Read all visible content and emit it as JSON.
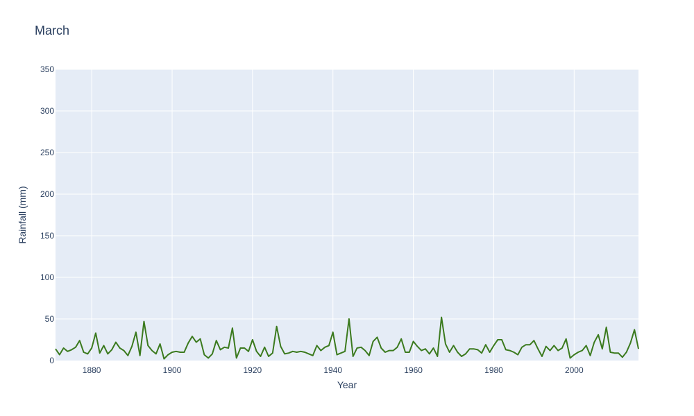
{
  "chart_data": {
    "type": "line",
    "title": "March",
    "xlabel": "Year",
    "ylabel": "Rainfall (mm)",
    "xlim": [
      1871,
      2016
    ],
    "ylim": [
      0,
      350
    ],
    "grid": true,
    "x_ticks": [
      1880,
      1900,
      1920,
      1940,
      1960,
      1980,
      2000
    ],
    "y_ticks": [
      0,
      50,
      100,
      150,
      200,
      250,
      300,
      350
    ],
    "line_color": "#3b7a1e",
    "series": [
      {
        "x": [
          1871,
          1872,
          1873,
          1874,
          1875,
          1876,
          1877,
          1878,
          1879,
          1880,
          1881,
          1882,
          1883,
          1884,
          1885,
          1886,
          1887,
          1888,
          1889,
          1890,
          1891,
          1892,
          1893,
          1894,
          1895,
          1896,
          1897,
          1898,
          1899,
          1900,
          1901,
          1902,
          1903,
          1904,
          1905,
          1906,
          1907,
          1908,
          1909,
          1910,
          1911,
          1912,
          1913,
          1914,
          1915,
          1916,
          1917,
          1918,
          1919,
          1920,
          1921,
          1922,
          1923,
          1924,
          1925,
          1926,
          1927,
          1928,
          1929,
          1930,
          1931,
          1932,
          1933,
          1934,
          1935,
          1936,
          1937,
          1938,
          1939,
          1940,
          1941,
          1942,
          1943,
          1944,
          1945,
          1946,
          1947,
          1948,
          1949,
          1950,
          1951,
          1952,
          1953,
          1954,
          1955,
          1956,
          1957,
          1958,
          1959,
          1960,
          1961,
          1962,
          1963,
          1964,
          1965,
          1966,
          1967,
          1968,
          1969,
          1970,
          1971,
          1972,
          1973,
          1974,
          1975,
          1976,
          1977,
          1978,
          1979,
          1980,
          1981,
          1982,
          1983,
          1984,
          1985,
          1986,
          1987,
          1988,
          1989,
          1990,
          1991,
          1992,
          1993,
          1994,
          1995,
          1996,
          1997,
          1998,
          1999,
          2000,
          2001,
          2002,
          2003,
          2004,
          2005,
          2006,
          2007,
          2008,
          2009,
          2010,
          2011,
          2012,
          2013,
          2014,
          2015,
          2016
        ],
        "values": [
          14,
          7,
          15,
          11,
          13,
          16,
          24,
          10,
          8,
          15,
          33,
          9,
          18,
          8,
          13,
          22,
          15,
          12,
          6,
          17,
          34,
          6,
          47,
          18,
          12,
          8,
          20,
          2,
          7,
          10,
          11,
          10,
          10,
          21,
          29,
          22,
          26,
          7,
          3,
          8,
          24,
          13,
          16,
          15,
          39,
          3,
          15,
          15,
          11,
          25,
          11,
          5,
          16,
          5,
          9,
          41,
          17,
          8,
          9,
          11,
          10,
          11,
          10,
          8,
          6,
          18,
          12,
          16,
          18,
          34,
          7,
          9,
          11,
          50,
          5,
          15,
          16,
          12,
          6,
          23,
          28,
          15,
          10,
          12,
          12,
          16,
          26,
          10,
          10,
          23,
          17,
          12,
          14,
          8,
          15,
          5,
          52,
          20,
          10,
          18,
          10,
          5,
          8,
          14,
          14,
          13,
          9,
          19,
          10,
          18,
          25,
          25,
          13,
          12,
          10,
          7,
          16,
          19,
          19,
          24,
          14,
          5,
          17,
          12,
          18,
          12,
          15,
          26,
          3,
          7,
          10,
          12,
          18,
          6,
          22,
          31,
          14,
          40,
          10,
          9,
          9,
          4,
          10,
          21,
          37,
          14
        ]
      }
    ]
  }
}
